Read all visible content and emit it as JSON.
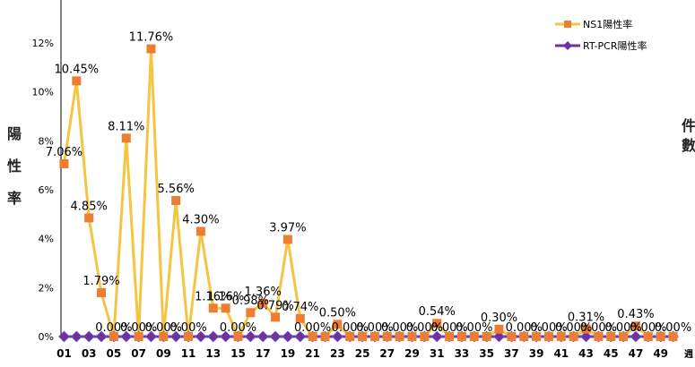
{
  "chart_data": {
    "type": "line",
    "title": "",
    "ylabel": "陽性率",
    "right_label": "件數",
    "xlabel": "週",
    "ylim": [
      0,
      12
    ],
    "yticks": [
      "0%",
      "2%",
      "4%",
      "6%",
      "8%",
      "10%",
      "12%"
    ],
    "xticks": [
      "01",
      "03",
      "05",
      "07",
      "09",
      "11",
      "13",
      "15",
      "17",
      "19",
      "21",
      "23",
      "25",
      "27",
      "29",
      "31",
      "33",
      "35",
      "37",
      "39",
      "41",
      "43",
      "45",
      "47",
      "49"
    ],
    "x": [
      1,
      2,
      3,
      4,
      5,
      6,
      7,
      8,
      9,
      10,
      11,
      12,
      13,
      14,
      15,
      16,
      17,
      18,
      19,
      20,
      21,
      22,
      23,
      24,
      25,
      26,
      27,
      28,
      29,
      30,
      31,
      32,
      33,
      34,
      35,
      36,
      37,
      38,
      39,
      40,
      41,
      42,
      43,
      44,
      45,
      46,
      47,
      48,
      49,
      50
    ],
    "legend_position": "top-right",
    "series": [
      {
        "name": "NS1陽性率",
        "color": "#f5c542",
        "marker_color": "#ed7d31",
        "values": [
          7.06,
          10.45,
          4.85,
          1.79,
          0.0,
          8.11,
          0.0,
          11.76,
          0.0,
          5.56,
          0.0,
          4.3,
          1.16,
          1.16,
          0.0,
          0.98,
          1.36,
          0.79,
          3.97,
          0.74,
          0.0,
          0.0,
          0.5,
          0.0,
          0.0,
          0.0,
          0.0,
          0.0,
          0.0,
          0.0,
          0.54,
          0.0,
          0.0,
          0.0,
          0.0,
          0.3,
          0.0,
          0.0,
          0.0,
          0.0,
          0.0,
          0.0,
          0.31,
          0.0,
          0.0,
          0.0,
          0.43,
          0.0,
          0.0,
          0.0
        ],
        "labels": [
          "7.06%",
          "10.45%",
          "4.85%",
          "1.79%",
          "0.00%",
          "8.11%",
          "0.00%",
          "11.76%",
          "0.00%",
          "5.56%",
          "0.00%",
          "4.30%",
          "1.16%",
          "1.16%",
          "0.00%",
          "0.98%",
          "1.36%",
          "0.79%",
          "3.97%",
          "0.74%",
          "0.00%",
          "",
          "0.50%",
          "0.00%",
          "",
          "0.00%",
          "",
          "0.00%",
          "",
          "0.00%",
          "0.54%",
          "0.00%",
          "",
          "0.00%",
          "",
          "0.30%",
          "",
          "0.00%",
          "",
          "0.00%",
          "",
          "0.00%",
          "0.31%",
          "0.00%",
          "",
          "0.00%",
          "0.43%",
          "0.00%",
          "",
          "0.00%"
        ]
      },
      {
        "name": "RT-PCR陽性率",
        "color": "#7030a0",
        "marker_color": "#7030a0",
        "values": [
          0,
          0,
          0,
          0,
          0,
          0,
          0,
          0,
          0,
          0,
          0,
          0,
          0,
          0,
          0,
          0,
          0,
          0,
          0,
          0,
          0,
          0,
          0,
          0,
          0,
          0,
          0,
          0,
          0,
          0,
          0,
          0,
          0,
          0,
          0,
          0,
          0,
          0,
          0,
          0,
          0,
          0,
          0,
          0,
          0,
          0,
          0,
          0,
          0,
          0
        ]
      }
    ]
  }
}
